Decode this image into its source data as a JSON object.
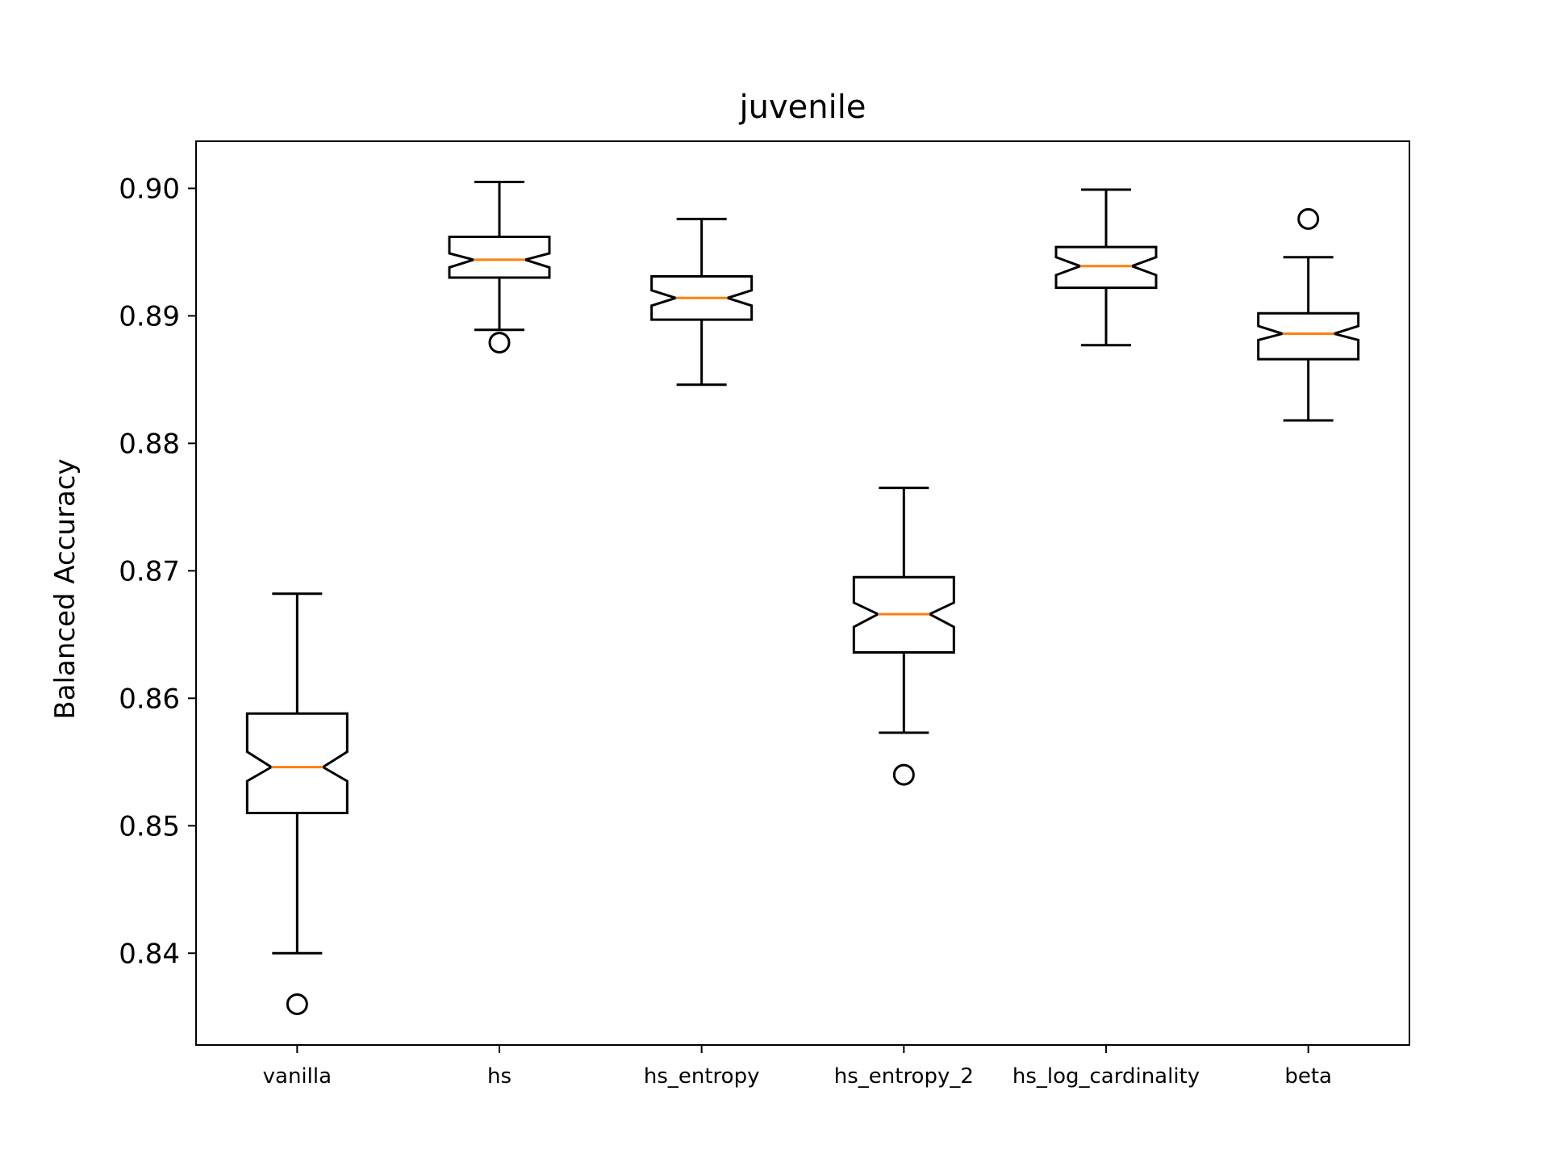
{
  "chart_data": {
    "type": "boxplot",
    "title": "juvenile",
    "xlabel": "",
    "ylabel": "Balanced Accuracy",
    "ylim": [
      0.8328,
      0.9037
    ],
    "yticks": [
      0.84,
      0.85,
      0.86,
      0.87,
      0.88,
      0.89,
      0.9
    ],
    "ytick_labels": [
      "0.84",
      "0.85",
      "0.86",
      "0.87",
      "0.88",
      "0.89",
      "0.90"
    ],
    "notched": true,
    "grid": false,
    "colors": {
      "box": "#000000",
      "median": "#ff7f0e"
    },
    "categories": [
      "vanilla",
      "hs",
      "hs_entropy",
      "hs_entropy_2",
      "hs_log_cardinality",
      "beta"
    ],
    "boxes": [
      {
        "name": "vanilla",
        "whisker_low": 0.84,
        "q1": 0.851,
        "notch_low": 0.8535,
        "median": 0.8546,
        "notch_high": 0.8558,
        "q3": 0.8588,
        "whisker_high": 0.8682,
        "fliers": [
          0.836
        ]
      },
      {
        "name": "hs",
        "whisker_low": 0.8889,
        "q1": 0.893,
        "notch_low": 0.8938,
        "median": 0.8944,
        "notch_high": 0.8949,
        "q3": 0.8962,
        "whisker_high": 0.9005,
        "fliers": [
          0.8879
        ]
      },
      {
        "name": "hs_entropy",
        "whisker_low": 0.8846,
        "q1": 0.8897,
        "notch_low": 0.8908,
        "median": 0.8914,
        "notch_high": 0.892,
        "q3": 0.8931,
        "whisker_high": 0.8976,
        "fliers": []
      },
      {
        "name": "hs_entropy_2",
        "whisker_low": 0.8573,
        "q1": 0.8636,
        "notch_low": 0.8656,
        "median": 0.8666,
        "notch_high": 0.8675,
        "q3": 0.8695,
        "whisker_high": 0.8765,
        "fliers": [
          0.854
        ]
      },
      {
        "name": "hs_log_cardinality",
        "whisker_low": 0.8877,
        "q1": 0.8922,
        "notch_low": 0.8932,
        "median": 0.8939,
        "notch_high": 0.8946,
        "q3": 0.8954,
        "whisker_high": 0.8999,
        "fliers": []
      },
      {
        "name": "beta",
        "whisker_low": 0.8818,
        "q1": 0.8866,
        "notch_low": 0.8881,
        "median": 0.8886,
        "notch_high": 0.8892,
        "q3": 0.8902,
        "whisker_high": 0.8946,
        "fliers": [
          0.8976
        ]
      }
    ]
  }
}
